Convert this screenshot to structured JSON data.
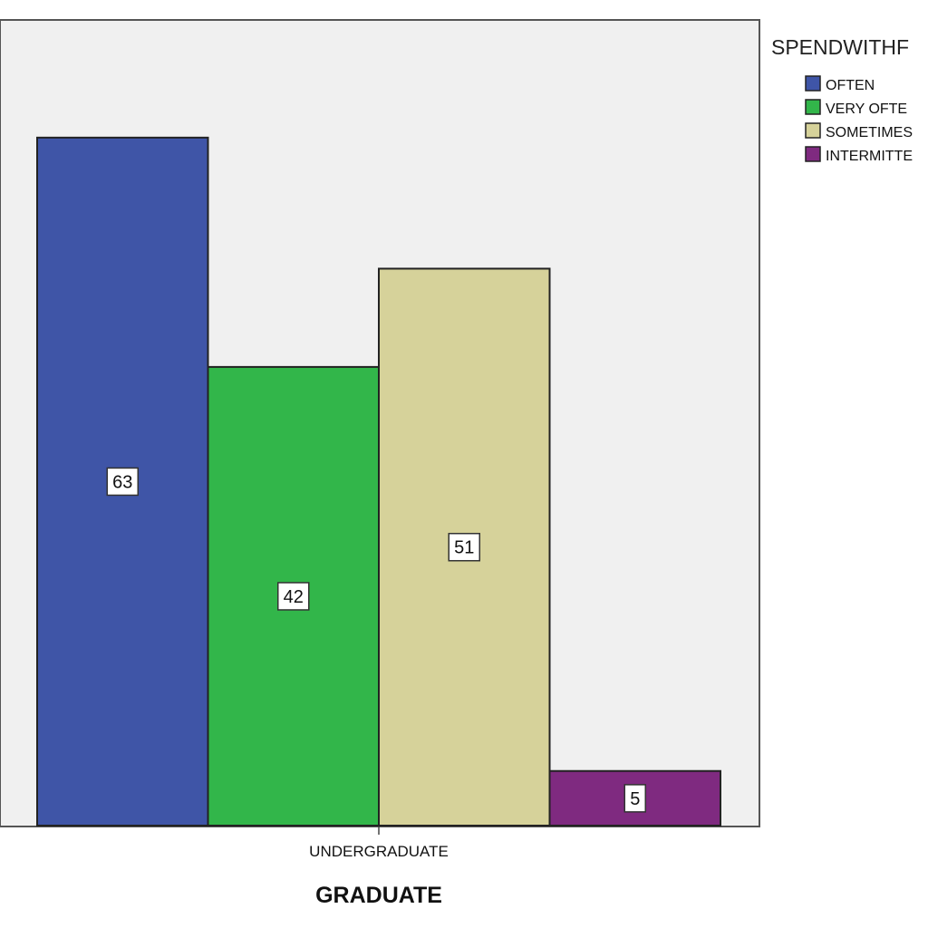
{
  "chart_data": {
    "type": "bar",
    "categories": [
      "UNDERGRADUATE"
    ],
    "series": [
      {
        "name": "OFTEN",
        "values": [
          63
        ],
        "color": "#3f55a7"
      },
      {
        "name": "VERY OFTE",
        "values": [
          42
        ],
        "color": "#32b64a"
      },
      {
        "name": "SOMETIMES",
        "values": [
          51
        ],
        "color": "#d6d29a"
      },
      {
        "name": "INTERMITTE",
        "values": [
          5
        ],
        "color": "#7f2a80"
      }
    ],
    "title": "",
    "xlabel": "GRADUATE",
    "ylabel": "",
    "ylim": [
      0,
      73.5
    ],
    "grid": false,
    "legend": {
      "title": "SPENDWITHF",
      "position": "right"
    },
    "plot_background": "#f0f0f0",
    "show_value_labels": true
  }
}
